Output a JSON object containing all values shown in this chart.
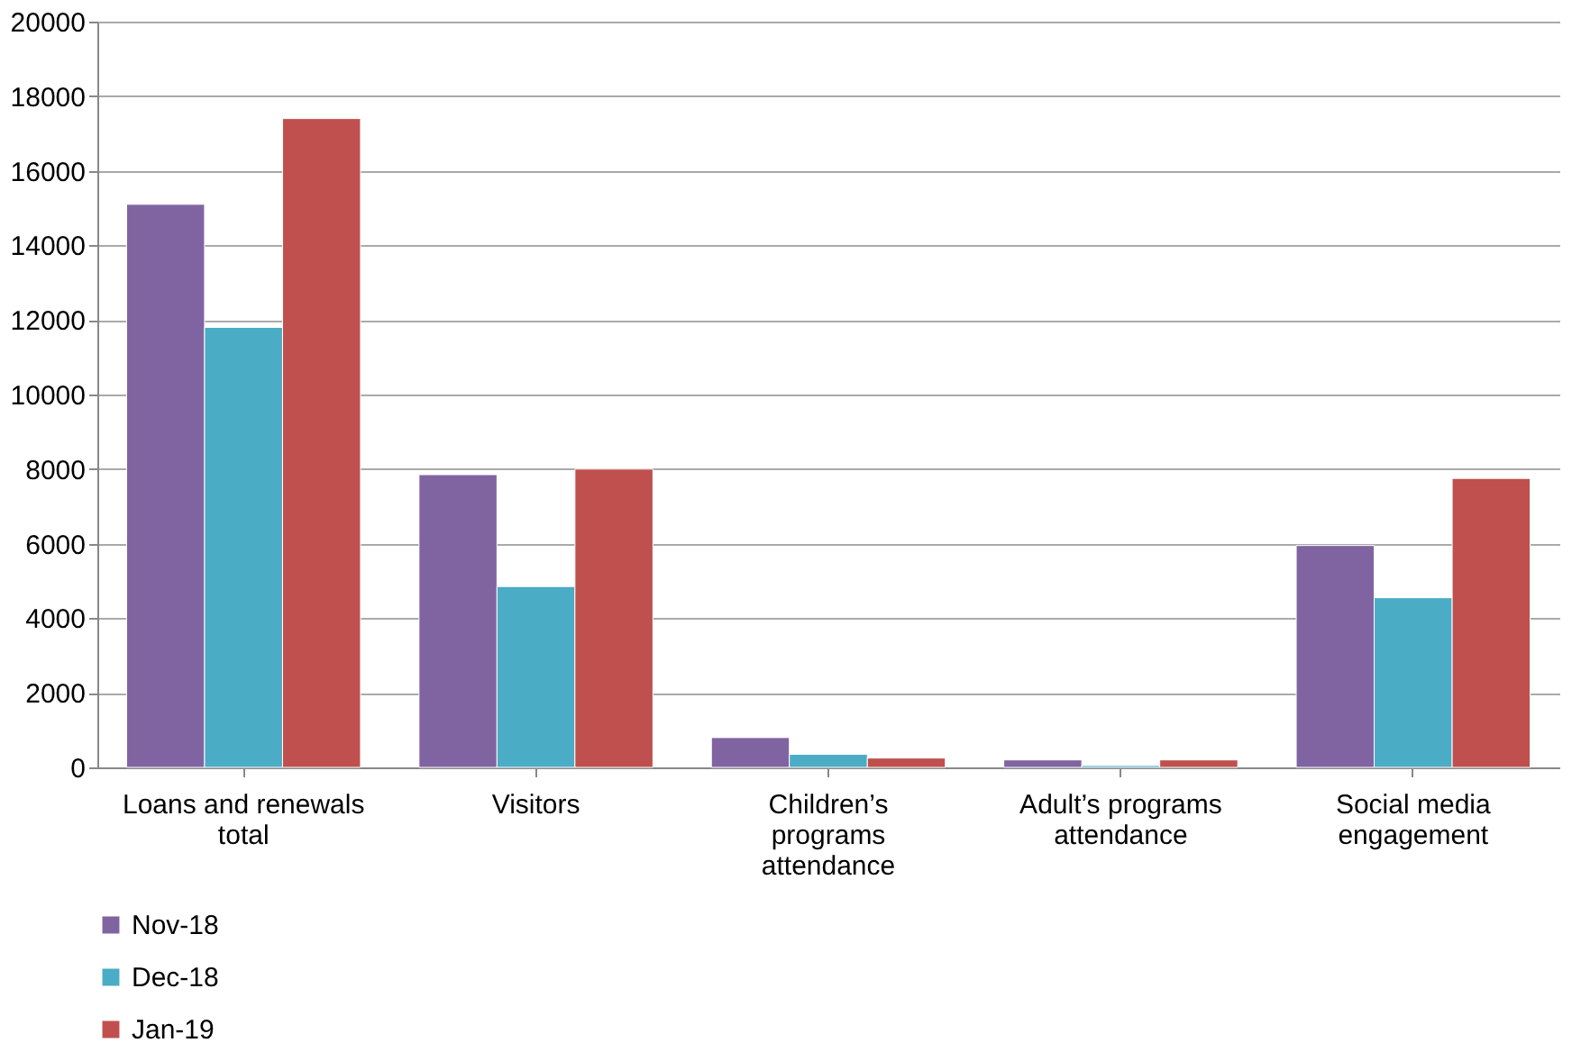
{
  "chart_data": {
    "type": "bar",
    "categories": [
      "Loans and renewals total",
      "Visitors",
      "Children’s programs attendance",
      "Adult’s programs attendance",
      "Social media engagement"
    ],
    "series": [
      {
        "name": "Nov-18",
        "color": "#8064a2",
        "values": [
          15100,
          7850,
          800,
          200,
          5950
        ]
      },
      {
        "name": "Dec-18",
        "color": "#4bacc6",
        "values": [
          11800,
          4850,
          350,
          50,
          4550
        ]
      },
      {
        "name": "Jan-19",
        "color": "#c0504d",
        "values": [
          17400,
          8000,
          250,
          200,
          7750
        ]
      }
    ],
    "ylim": [
      0,
      20000
    ],
    "yticks": [
      0,
      2000,
      4000,
      6000,
      8000,
      10000,
      12000,
      14000,
      16000,
      18000,
      20000
    ],
    "grid": "y",
    "legend": "bottom left"
  }
}
